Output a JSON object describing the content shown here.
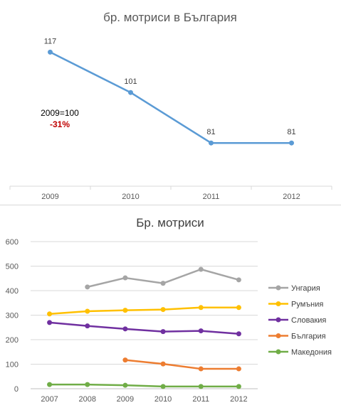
{
  "chart_data": [
    {
      "type": "line",
      "title": "бр. мотриси в България",
      "categories": [
        "2009",
        "2010",
        "2011",
        "2012"
      ],
      "series": [
        {
          "values": [
            117,
            101,
            81,
            81
          ],
          "color": "#5b9bd5"
        }
      ],
      "data_labels": [
        "117",
        "101",
        "81",
        "81"
      ],
      "annotation": {
        "text": "2009=100",
        "change": "-31%",
        "change_color": "#c00000"
      },
      "ylim": [
        65,
        125
      ],
      "y_axis_visible": false,
      "grid": false
    },
    {
      "type": "line",
      "title": "Бр. мотриси",
      "categories": [
        "2007",
        "2008",
        "2009",
        "2010",
        "2011",
        "2012"
      ],
      "ylim": [
        0,
        600
      ],
      "yticks": [
        "0",
        "100",
        "200",
        "300",
        "400",
        "500",
        "600"
      ],
      "grid": true,
      "legend_position": "right",
      "series": [
        {
          "name": "Унгария",
          "color": "#a5a5a5",
          "values": [
            null,
            415,
            452,
            430,
            487,
            444
          ]
        },
        {
          "name": "Румъния",
          "color": "#ffc000",
          "values": [
            305,
            316,
            320,
            323,
            331,
            331
          ]
        },
        {
          "name": "Словакия",
          "color": "#7030a0",
          "values": [
            270,
            256,
            244,
            233,
            236,
            224
          ]
        },
        {
          "name": "България",
          "color": "#ed7d31",
          "values": [
            null,
            null,
            117,
            101,
            81,
            81
          ]
        },
        {
          "name": "Македония",
          "color": "#70ad47",
          "values": [
            17,
            17,
            14,
            9,
            9,
            9
          ]
        }
      ]
    }
  ]
}
